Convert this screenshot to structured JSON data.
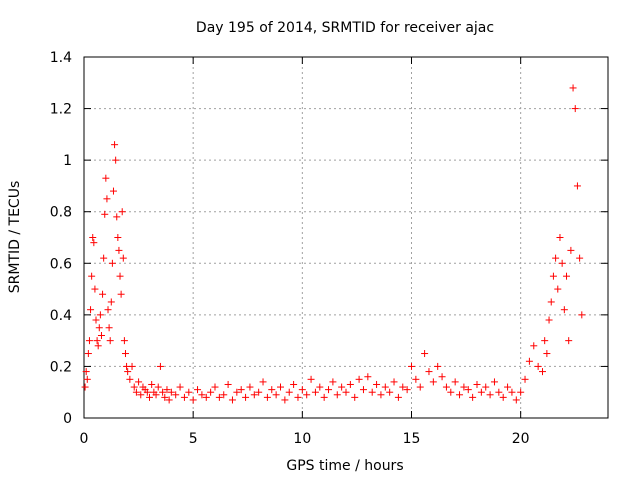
{
  "chart_data": {
    "type": "scatter",
    "title": "Day 195 of 2014, SRMTID for receiver ajac",
    "xlabel": "GPS time / hours",
    "ylabel": "SRMTID / TECUs",
    "xlim": [
      0,
      24
    ],
    "ylim": [
      0,
      1.4
    ],
    "xticks": [
      0,
      5,
      10,
      15,
      20
    ],
    "yticks": [
      0,
      0.2,
      0.4,
      0.6,
      0.8,
      1,
      1.2,
      1.4
    ],
    "ytick_labels": [
      "0",
      "0.2",
      "0.4",
      "0.6",
      "0.8",
      "1",
      "1.2",
      "1.4"
    ],
    "xtick_labels": [
      "0",
      "5",
      "10",
      "15",
      "20"
    ],
    "grid": true,
    "marker": "+",
    "series": [
      {
        "name": "SRMTID",
        "color": "#ff0000",
        "x": [
          0.05,
          0.1,
          0.15,
          0.2,
          0.25,
          0.3,
          0.35,
          0.4,
          0.45,
          0.5,
          0.55,
          0.6,
          0.65,
          0.7,
          0.75,
          0.8,
          0.85,
          0.9,
          0.95,
          1.0,
          1.05,
          1.1,
          1.15,
          1.2,
          1.25,
          1.3,
          1.35,
          1.4,
          1.45,
          1.5,
          1.55,
          1.6,
          1.65,
          1.7,
          1.75,
          1.8,
          1.85,
          1.9,
          1.95,
          2.0,
          2.1,
          2.2,
          2.3,
          2.4,
          2.5,
          2.6,
          2.7,
          2.8,
          2.9,
          3.0,
          3.1,
          3.2,
          3.3,
          3.4,
          3.5,
          3.6,
          3.7,
          3.8,
          3.9,
          4.0,
          4.2,
          4.4,
          4.6,
          4.8,
          5.0,
          5.2,
          5.4,
          5.6,
          5.8,
          6.0,
          6.2,
          6.4,
          6.6,
          6.8,
          7.0,
          7.2,
          7.4,
          7.6,
          7.8,
          8.0,
          8.2,
          8.4,
          8.6,
          8.8,
          9.0,
          9.2,
          9.4,
          9.6,
          9.8,
          10.0,
          10.2,
          10.4,
          10.6,
          10.8,
          11.0,
          11.2,
          11.4,
          11.6,
          11.8,
          12.0,
          12.2,
          12.4,
          12.6,
          12.8,
          13.0,
          13.2,
          13.4,
          13.6,
          13.8,
          14.0,
          14.2,
          14.4,
          14.6,
          14.8,
          15.0,
          15.2,
          15.4,
          15.6,
          15.8,
          16.0,
          16.2,
          16.4,
          16.6,
          16.8,
          17.0,
          17.2,
          17.4,
          17.6,
          17.8,
          18.0,
          18.2,
          18.4,
          18.6,
          18.8,
          19.0,
          19.2,
          19.4,
          19.6,
          19.8,
          20.0,
          20.2,
          20.4,
          20.6,
          20.8,
          21.0,
          21.1,
          21.2,
          21.3,
          21.4,
          21.5,
          21.6,
          21.7,
          21.8,
          21.9,
          22.0,
          22.1,
          22.2,
          22.3,
          22.4,
          22.5,
          22.6,
          22.7,
          22.8
        ],
        "y": [
          0.12,
          0.18,
          0.15,
          0.25,
          0.3,
          0.42,
          0.55,
          0.7,
          0.68,
          0.5,
          0.38,
          0.3,
          0.28,
          0.35,
          0.4,
          0.32,
          0.48,
          0.62,
          0.79,
          0.93,
          0.85,
          0.42,
          0.35,
          0.3,
          0.45,
          0.6,
          0.88,
          1.06,
          1.0,
          0.78,
          0.7,
          0.65,
          0.55,
          0.48,
          0.8,
          0.62,
          0.3,
          0.25,
          0.2,
          0.18,
          0.15,
          0.2,
          0.12,
          0.1,
          0.14,
          0.09,
          0.12,
          0.11,
          0.1,
          0.08,
          0.13,
          0.1,
          0.09,
          0.12,
          0.2,
          0.1,
          0.08,
          0.11,
          0.07,
          0.1,
          0.09,
          0.12,
          0.08,
          0.1,
          0.07,
          0.11,
          0.09,
          0.08,
          0.1,
          0.12,
          0.08,
          0.09,
          0.13,
          0.07,
          0.1,
          0.11,
          0.08,
          0.12,
          0.09,
          0.1,
          0.14,
          0.08,
          0.11,
          0.09,
          0.12,
          0.07,
          0.1,
          0.13,
          0.08,
          0.11,
          0.09,
          0.15,
          0.1,
          0.12,
          0.08,
          0.11,
          0.14,
          0.09,
          0.12,
          0.1,
          0.13,
          0.08,
          0.15,
          0.11,
          0.16,
          0.1,
          0.13,
          0.09,
          0.12,
          0.1,
          0.14,
          0.08,
          0.12,
          0.11,
          0.2,
          0.15,
          0.12,
          0.25,
          0.18,
          0.14,
          0.2,
          0.16,
          0.12,
          0.1,
          0.14,
          0.09,
          0.12,
          0.11,
          0.08,
          0.13,
          0.1,
          0.12,
          0.09,
          0.14,
          0.1,
          0.08,
          0.12,
          0.1,
          0.07,
          0.1,
          0.15,
          0.22,
          0.28,
          0.2,
          0.18,
          0.3,
          0.25,
          0.38,
          0.45,
          0.55,
          0.62,
          0.5,
          0.7,
          0.6,
          0.42,
          0.55,
          0.3,
          0.65,
          1.28,
          1.2,
          0.9,
          0.62,
          0.4
        ]
      }
    ]
  }
}
